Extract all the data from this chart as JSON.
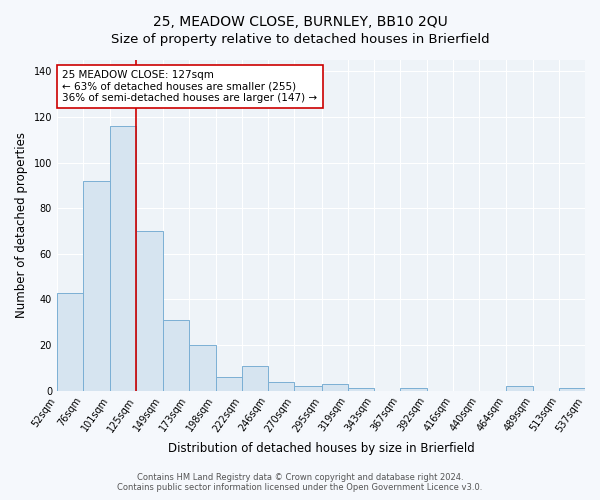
{
  "title": "25, MEADOW CLOSE, BURNLEY, BB10 2QU",
  "subtitle": "Size of property relative to detached houses in Brierfield",
  "xlabel": "Distribution of detached houses by size in Brierfield",
  "ylabel": "Number of detached properties",
  "bin_edges": [
    52,
    76,
    101,
    125,
    149,
    173,
    198,
    222,
    246,
    270,
    295,
    319,
    343,
    367,
    392,
    416,
    440,
    464,
    489,
    513,
    537
  ],
  "bar_heights": [
    43,
    92,
    116,
    70,
    31,
    20,
    6,
    11,
    4,
    2,
    3,
    1,
    0,
    1,
    0,
    0,
    0,
    2,
    0,
    1
  ],
  "bar_color": "#d6e4f0",
  "bar_edgecolor": "#7bafd4",
  "bar_linewidth": 0.7,
  "vline_x": 125,
  "vline_color": "#cc0000",
  "vline_linewidth": 1.2,
  "annotation_line1": "25 MEADOW CLOSE: 127sqm",
  "annotation_line2": "← 63% of detached houses are smaller (255)",
  "annotation_line3": "36% of semi-detached houses are larger (147) →",
  "annotation_boxcolor": "white",
  "annotation_edgecolor": "#cc0000",
  "ylim": [
    0,
    145
  ],
  "yticks": [
    0,
    20,
    40,
    60,
    80,
    100,
    120,
    140
  ],
  "tick_labels": [
    "52sqm",
    "76sqm",
    "101sqm",
    "125sqm",
    "149sqm",
    "173sqm",
    "198sqm",
    "222sqm",
    "246sqm",
    "270sqm",
    "295sqm",
    "319sqm",
    "343sqm",
    "367sqm",
    "392sqm",
    "416sqm",
    "440sqm",
    "464sqm",
    "489sqm",
    "513sqm",
    "537sqm"
  ],
  "footnote1": "Contains HM Land Registry data © Crown copyright and database right 2024.",
  "footnote2": "Contains public sector information licensed under the Open Government Licence v3.0.",
  "plot_bg_color": "#eef3f8",
  "fig_bg_color": "#f5f8fc",
  "grid_color": "#ffffff",
  "title_fontsize": 10,
  "label_fontsize": 8.5,
  "tick_fontsize": 7,
  "footnote_fontsize": 6,
  "annot_fontsize": 7.5
}
